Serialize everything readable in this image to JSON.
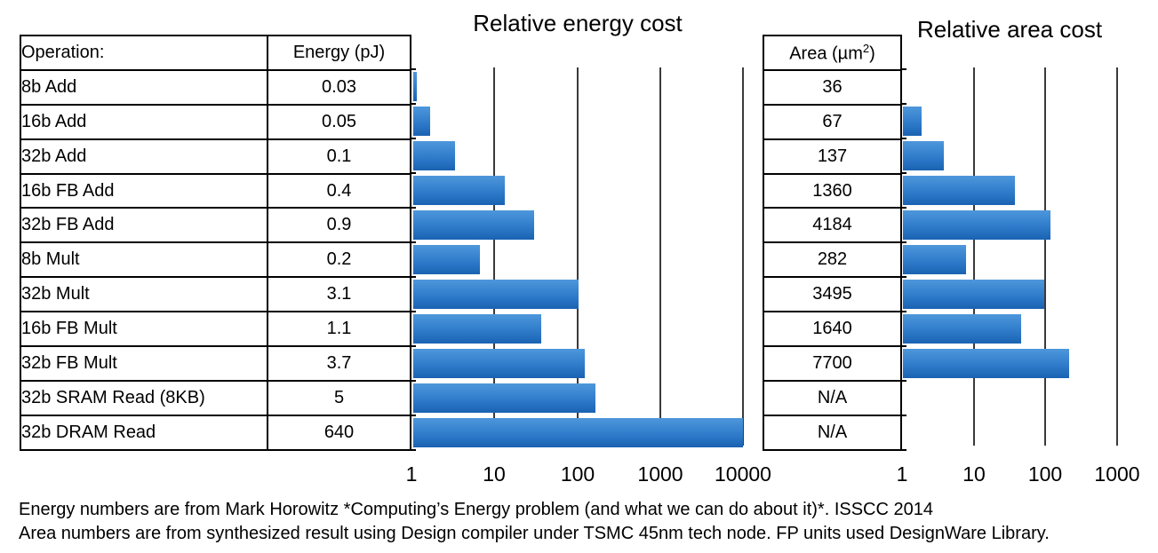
{
  "figure": {
    "footnotes": [
      "Energy numbers are from Mark Horowitz *Computing’s Energy problem (and what we can do about it)*. ISSCC 2014",
      "Area numbers are from synthesized result using Design compiler under TSMC 45nm tech node. FP units used DesignWare Library."
    ]
  },
  "tables": {
    "operation_header": "Operation:",
    "energy_header": "Energy (pJ)",
    "area_header": {
      "prefix": "Area (µm",
      "sup": "2",
      "suffix": ")"
    }
  },
  "chart_data": [
    {
      "type": "bar",
      "orientation": "horizontal",
      "scale": "log",
      "title": "Relative energy cost",
      "categories": [
        "8b Add",
        "16b Add",
        "32b Add",
        "16b FB Add",
        "32b FB Add",
        "8b Mult",
        "32b Mult",
        "16b FB Mult",
        "32b FB Mult",
        "32b SRAM Read (8KB)",
        "32b DRAM Read"
      ],
      "values": [
        0.03,
        0.05,
        0.1,
        0.4,
        0.9,
        0.2,
        3.1,
        1.1,
        3.7,
        5,
        640
      ],
      "value_labels": [
        "0.03",
        "0.05",
        "0.1",
        "0.4",
        "0.9",
        "0.2",
        "3.1",
        "1.1",
        "3.7",
        "5",
        "640"
      ],
      "unit": "pJ",
      "relative_base": 0.03,
      "relative_values": [
        1,
        1.7,
        3.3,
        13.3,
        30,
        6.7,
        103.3,
        36.7,
        123.3,
        166.7,
        21333
      ],
      "axis_ticks": [
        "1",
        "10",
        "100",
        "1000",
        "10000"
      ],
      "xlim": [
        1,
        10000
      ],
      "grid": true,
      "legend": "none"
    },
    {
      "type": "bar",
      "orientation": "horizontal",
      "scale": "log",
      "title": "Relative area cost",
      "categories": [
        "8b Add",
        "16b Add",
        "32b Add",
        "16b FB Add",
        "32b FB Add",
        "8b Mult",
        "32b Mult",
        "16b FB Mult",
        "32b FB Mult",
        "32b SRAM Read (8KB)",
        "32b DRAM Read"
      ],
      "values": [
        36,
        67,
        137,
        1360,
        4184,
        282,
        3495,
        1640,
        7700,
        null,
        null
      ],
      "value_labels": [
        "36",
        "67",
        "137",
        "1360",
        "4184",
        "282",
        "3495",
        "1640",
        "7700",
        "N/A",
        "N/A"
      ],
      "unit": "µm²",
      "relative_base": 36,
      "relative_values": [
        1,
        1.9,
        3.8,
        37.8,
        116.2,
        7.8,
        97.1,
        45.6,
        213.9,
        null,
        null
      ],
      "axis_ticks": [
        "1",
        "10",
        "100",
        "1000"
      ],
      "xlim": [
        1,
        1000
      ],
      "grid": true,
      "legend": "none"
    }
  ],
  "colors": {
    "bar_gradient_top": "#4E97DB",
    "bar_gradient_mid": "#2F7CCB",
    "bar_gradient_bottom": "#1A62B2",
    "gridline": "#3A3A3A",
    "table_border": "#000000",
    "text": "#000000"
  }
}
